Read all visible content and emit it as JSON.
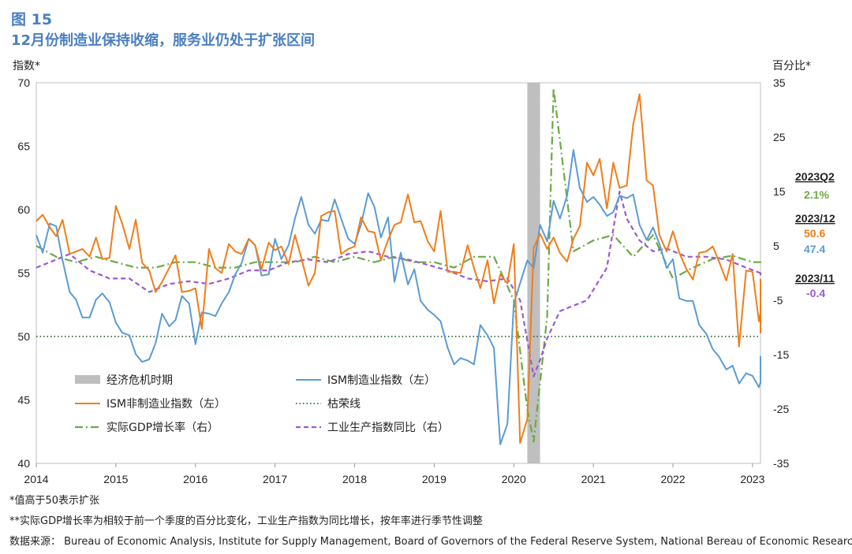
{
  "figure": {
    "label": "图 15",
    "title": "12月份制造业保持收缩，服务业仍处于扩张区间",
    "left_axis_title": "指数*",
    "right_axis_title": "百分比*"
  },
  "notes": {
    "note1": "*值高于50表示扩张",
    "note2": "**实际GDP增长率为相较于前一个季度的百分比变化，工业生产指数为同比增长，按年率进行季节性调整",
    "note3": "数据来源：  Bureau of Economic Analysis, Institute for Supply Management, Board of Governors of the Federal Reserve System, National Bereau of Economic Research"
  },
  "latest": {
    "gdp_period": "2023Q2",
    "gdp_value": "2.1%",
    "ism_period": "2023/12",
    "services_value": "50.6",
    "manufacturing_value": "47.4",
    "ip_period": "2023/11",
    "ip_value": "-0.4"
  },
  "colors": {
    "manufacturing": "#5b9bd5",
    "services": "#f07d1a",
    "gdp": "#6aaa45",
    "industrial": "#9b59d0",
    "boom_bust": "#2e6b2e",
    "recession": "#bfbfbf"
  },
  "chart_data": {
    "type": "line",
    "x_ticks": [
      "2014",
      "2015",
      "2016",
      "2017",
      "2018",
      "2019",
      "2020",
      "2021",
      "2022",
      "2023"
    ],
    "left_axis": {
      "ylim": [
        40,
        70
      ],
      "ticks": [
        "40",
        "45",
        "50",
        "55",
        "60",
        "65",
        "70"
      ]
    },
    "right_axis": {
      "ylim": [
        -35,
        35
      ],
      "ticks": [
        "-35",
        "-25",
        "-15",
        "-5",
        "5",
        "15",
        "25",
        "35"
      ]
    },
    "recession": {
      "start": 2020.17,
      "end": 2020.33
    },
    "legend": [
      {
        "key": "recession",
        "label": "经济危机时期"
      },
      {
        "key": "manufacturing",
        "label": "ISM制造业指数（左）"
      },
      {
        "key": "services",
        "label": "ISM非制造业指数（左）"
      },
      {
        "key": "boom_bust",
        "label": "枯荣线"
      },
      {
        "key": "gdp",
        "label": "实际GDP增长率（右）"
      },
      {
        "key": "industrial",
        "label": "工业生产指数同比（右）"
      }
    ],
    "boom_bust_line": 50,
    "series": [
      {
        "name": "ISM制造业指数（左）",
        "key": "manufacturing",
        "axis": "left",
        "x": [
          2014.0,
          2014.08,
          2014.17,
          2014.25,
          2014.33,
          2014.42,
          2014.5,
          2014.58,
          2014.67,
          2014.75,
          2014.83,
          2014.92,
          2015.0,
          2015.08,
          2015.17,
          2015.25,
          2015.33,
          2015.42,
          2015.5,
          2015.58,
          2015.67,
          2015.75,
          2015.83,
          2015.92,
          2016.0,
          2016.08,
          2016.17,
          2016.25,
          2016.33,
          2016.42,
          2016.5,
          2016.58,
          2016.67,
          2016.75,
          2016.83,
          2016.92,
          2017.0,
          2017.08,
          2017.17,
          2017.25,
          2017.33,
          2017.42,
          2017.5,
          2017.58,
          2017.67,
          2017.75,
          2017.83,
          2017.92,
          2018.0,
          2018.08,
          2018.17,
          2018.25,
          2018.33,
          2018.42,
          2018.5,
          2018.58,
          2018.67,
          2018.75,
          2018.83,
          2018.92,
          2019.0,
          2019.08,
          2019.17,
          2019.25,
          2019.33,
          2019.42,
          2019.5,
          2019.58,
          2019.67,
          2019.75,
          2019.83,
          2019.92,
          2020.0,
          2020.08,
          2020.17,
          2020.25,
          2020.33,
          2020.42,
          2020.5,
          2020.58,
          2020.67,
          2020.75,
          2020.83,
          2020.92,
          2021.0,
          2021.08,
          2021.17,
          2021.25,
          2021.33,
          2021.42,
          2021.5,
          2021.58,
          2021.67,
          2021.75,
          2021.83,
          2021.92,
          2022.0,
          2022.08,
          2022.17,
          2022.25,
          2022.33,
          2022.42,
          2022.5,
          2022.58,
          2022.67,
          2022.75,
          2022.83,
          2022.92,
          2023.0,
          2023.08,
          2023.17,
          2023.25,
          2023.33,
          2023.42,
          2023.5,
          2023.58,
          2023.67,
          2023.75,
          2023.83,
          2023.92
        ],
        "values": [
          58.0,
          56.6,
          58.9,
          58.7,
          56.0,
          53.5,
          52.9,
          51.5,
          51.5,
          52.9,
          53.4,
          52.7,
          51.1,
          50.3,
          50.1,
          48.6,
          48.0,
          48.2,
          49.5,
          51.8,
          50.8,
          51.3,
          53.2,
          52.6,
          49.4,
          51.9,
          51.8,
          51.6,
          52.6,
          53.5,
          54.9,
          55.8,
          57.7,
          57.2,
          54.8,
          54.9,
          57.7,
          56.1,
          57.2,
          59.3,
          61.0,
          58.8,
          58.1,
          59.2,
          59.1,
          60.8,
          59.3,
          57.7,
          57.3,
          58.8,
          61.3,
          60.2,
          57.8,
          59.4,
          54.3,
          56.6,
          54.1,
          55.3,
          52.8,
          52.1,
          51.7,
          51.2,
          49.1,
          47.8,
          48.3,
          48.1,
          47.8,
          50.9,
          50.1,
          49.1,
          41.5,
          43.1,
          52.6,
          54.2,
          56.0,
          55.4,
          58.8,
          57.5,
          60.7,
          59.3,
          61.1,
          64.7,
          61.7,
          60.6,
          61.0,
          60.4,
          59.5,
          59.8,
          61.1,
          60.9,
          61.2,
          58.8,
          57.6,
          58.6,
          57.3,
          55.4,
          56.1,
          53.0,
          52.8,
          52.8,
          50.9,
          50.2,
          49.0,
          48.4,
          47.4,
          47.7,
          46.3,
          47.1,
          46.9,
          46.0,
          46.4,
          47.4,
          48.4,
          48.4,
          48.4,
          48.4,
          47.8,
          47.4,
          46.3,
          47.4
        ]
      },
      {
        "name": "ISM非制造业指数（左）",
        "key": "services",
        "axis": "left",
        "x": [
          2014.0,
          2014.08,
          2014.17,
          2014.25,
          2014.33,
          2014.42,
          2014.5,
          2014.58,
          2014.67,
          2014.75,
          2014.83,
          2014.92,
          2015.0,
          2015.08,
          2015.17,
          2015.25,
          2015.33,
          2015.42,
          2015.5,
          2015.58,
          2015.67,
          2015.75,
          2015.83,
          2015.92,
          2016.0,
          2016.08,
          2016.17,
          2016.25,
          2016.33,
          2016.42,
          2016.5,
          2016.58,
          2016.67,
          2016.75,
          2016.83,
          2016.92,
          2017.0,
          2017.08,
          2017.17,
          2017.25,
          2017.33,
          2017.42,
          2017.5,
          2017.58,
          2017.67,
          2017.75,
          2017.83,
          2017.92,
          2018.0,
          2018.08,
          2018.17,
          2018.25,
          2018.33,
          2018.42,
          2018.5,
          2018.58,
          2018.67,
          2018.75,
          2018.83,
          2018.92,
          2019.0,
          2019.08,
          2019.17,
          2019.25,
          2019.33,
          2019.42,
          2019.5,
          2019.58,
          2019.67,
          2019.75,
          2019.83,
          2019.92,
          2020.0,
          2020.08,
          2020.17,
          2020.25,
          2020.33,
          2020.42,
          2020.5,
          2020.58,
          2020.67,
          2020.75,
          2020.83,
          2020.92,
          2021.0,
          2021.08,
          2021.17,
          2021.25,
          2021.33,
          2021.42,
          2021.5,
          2021.58,
          2021.67,
          2021.75,
          2021.83,
          2021.92,
          2022.0,
          2022.08,
          2022.17,
          2022.25,
          2022.33,
          2022.42,
          2022.5,
          2022.58,
          2022.67,
          2022.75,
          2022.83,
          2022.92,
          2023.0,
          2023.08,
          2023.17,
          2023.25,
          2023.33,
          2023.42,
          2023.5,
          2023.58,
          2023.67,
          2023.75,
          2023.83,
          2023.92
        ],
        "values": [
          59.1,
          59.6,
          58.6,
          57.9,
          59.2,
          56.5,
          56.7,
          56.9,
          56.3,
          57.8,
          56.1,
          56.2,
          60.3,
          58.9,
          56.9,
          59.2,
          55.8,
          55.2,
          53.5,
          54.3,
          55.4,
          56.4,
          53.5,
          53.6,
          53.8,
          50.6,
          56.9,
          55.4,
          55.0,
          57.3,
          56.7,
          56.5,
          57.7,
          57.2,
          55.3,
          57.4,
          56.8,
          57.1,
          55.7,
          58.0,
          56.2,
          54.0,
          55.0,
          59.5,
          59.8,
          59.9,
          56.5,
          56.9,
          57.1,
          59.4,
          58.3,
          58.2,
          56.0,
          57.6,
          58.8,
          59.0,
          61.2,
          59.0,
          59.1,
          57.5,
          56.7,
          59.9,
          55.1,
          55.1,
          55.0,
          57.2,
          55.4,
          53.8,
          56.0,
          52.6,
          54.9,
          54.2,
          57.3,
          41.6,
          43.5,
          57.0,
          58.1,
          56.9,
          57.8,
          56.6,
          55.9,
          57.7,
          58.7,
          63.7,
          62.7,
          64.0,
          60.1,
          63.7,
          61.7,
          61.9,
          66.7,
          69.1,
          62.3,
          61.9,
          58.0,
          56.7,
          58.3,
          56.6,
          55.3,
          54.5,
          56.6,
          56.7,
          57.1,
          55.9,
          54.4,
          56.5,
          49.2,
          55.2,
          55.1,
          51.2,
          51.9,
          50.3,
          53.9,
          52.7,
          54.5,
          54.1,
          53.6,
          51.8,
          52.7,
          50.6
        ]
      },
      {
        "name": "实际GDP增长率（右）",
        "key": "gdp",
        "axis": "right",
        "x": [
          2014.0,
          2014.25,
          2014.5,
          2014.75,
          2015.0,
          2015.25,
          2015.5,
          2015.75,
          2016.0,
          2016.25,
          2016.5,
          2016.75,
          2017.0,
          2017.25,
          2017.5,
          2017.75,
          2018.0,
          2018.25,
          2018.5,
          2018.75,
          2019.0,
          2019.25,
          2019.5,
          2019.75,
          2020.0,
          2020.17,
          2020.25,
          2020.42,
          2020.5,
          2020.75,
          2021.0,
          2021.25,
          2021.5,
          2021.75,
          2022.0,
          2022.25,
          2022.5,
          2022.75,
          2023.0,
          2023.25,
          2023.5,
          2023.75,
          2024.0
        ],
        "values": [
          5.0,
          3.0,
          2.0,
          3.0,
          2.0,
          1.0,
          1.0,
          2.0,
          2.0,
          1.0,
          1.0,
          2.0,
          2.0,
          2.0,
          3.0,
          2.0,
          3.0,
          2.0,
          3.0,
          2.0,
          2.0,
          1.0,
          3.0,
          3.0,
          -5.0,
          -25.0,
          -31.0,
          -8.0,
          34.0,
          4.0,
          6.0,
          7.0,
          3.0,
          7.0,
          -1.0,
          1.0,
          2.6,
          3.2,
          2.0,
          2.0,
          2.1,
          2.1,
          2.1
        ]
      },
      {
        "name": "工业生产指数同比（右）",
        "key": "industrial",
        "axis": "right",
        "x": [
          2014.0,
          2014.17,
          2014.42,
          2014.67,
          2014.92,
          2015.17,
          2015.42,
          2015.67,
          2015.92,
          2016.17,
          2016.42,
          2016.67,
          2016.92,
          2017.17,
          2017.42,
          2017.67,
          2017.92,
          2018.17,
          2018.42,
          2018.67,
          2018.92,
          2019.17,
          2019.42,
          2019.67,
          2019.92,
          2020.08,
          2020.25,
          2020.33,
          2020.42,
          2020.58,
          2020.75,
          2020.92,
          2021.17,
          2021.33,
          2021.42,
          2021.58,
          2021.75,
          2021.92,
          2022.17,
          2022.42,
          2022.67,
          2022.92,
          2023.17,
          2023.42,
          2023.67,
          2023.92
        ],
        "values": [
          1.0,
          2.0,
          3.5,
          0.5,
          -1.0,
          -1.0,
          -3.5,
          -2.0,
          -1.5,
          -2.0,
          -1.0,
          0.5,
          0.5,
          2.0,
          2.5,
          2.0,
          3.5,
          4.0,
          3.0,
          2.5,
          1.5,
          0.5,
          -1.0,
          -1.5,
          -1.0,
          -5.0,
          -19.0,
          -16.0,
          -12.0,
          -7.0,
          -6.0,
          -5.0,
          1.0,
          15.0,
          10.0,
          6.0,
          4.0,
          4.5,
          3.0,
          3.0,
          2.5,
          1.0,
          0.0,
          -0.5,
          0.0,
          -0.4
        ]
      }
    ]
  }
}
